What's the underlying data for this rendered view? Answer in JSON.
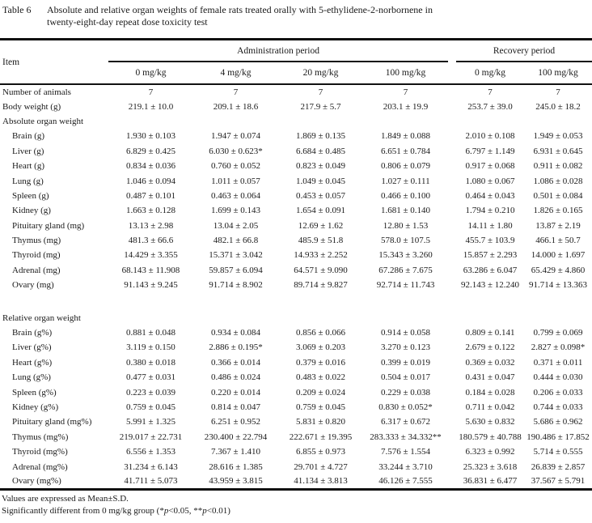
{
  "colors": {
    "ink": "#1a1a1a",
    "background": "#ffffff",
    "rule": "#111111"
  },
  "document": {
    "table_label": "Table 6",
    "title_line1": "Absolute and relative organ weights of female rats treated orally with 5-ethylidene-2-norbornene in",
    "title_line2": "twenty-eight-day repeat dose toxicity test"
  },
  "table": {
    "item_header": "Item",
    "column_groups": [
      {
        "label": "Administration period"
      },
      {
        "label": "Recovery period"
      }
    ],
    "doses": [
      "0 mg/kg",
      "4 mg/kg",
      "20 mg/kg",
      "100 mg/kg",
      "0 mg/kg",
      "100 mg/kg"
    ],
    "rows": [
      {
        "type": "data",
        "indent": 0,
        "item": "Number of animals",
        "values": [
          "7",
          "7",
          "7",
          "7",
          "7",
          "7"
        ]
      },
      {
        "type": "data",
        "indent": 0,
        "item": "Body weight (g)",
        "values": [
          "219.1 ± 10.0",
          "209.1 ± 18.6",
          "217.9 ± 5.7",
          "203.1 ± 19.9",
          "253.7 ± 39.0",
          "245.0 ± 18.2"
        ]
      },
      {
        "type": "section",
        "indent": 0,
        "item": "Absolute organ weight",
        "values": [
          "",
          "",
          "",
          "",
          "",
          ""
        ]
      },
      {
        "type": "data",
        "indent": 1,
        "item": "Brain (g)",
        "values": [
          "1.930 ± 0.103",
          "1.947 ± 0.074",
          "1.869 ± 0.135",
          "1.849 ± 0.088",
          "2.010 ± 0.108",
          "1.949 ± 0.053"
        ]
      },
      {
        "type": "data",
        "indent": 1,
        "item": "Liver (g)",
        "values": [
          "6.829 ± 0.425",
          "6.030 ± 0.623*",
          "6.684 ± 0.485",
          "6.651 ± 0.784",
          "6.797 ± 1.149",
          "6.931 ± 0.645"
        ]
      },
      {
        "type": "data",
        "indent": 1,
        "item": "Heart (g)",
        "values": [
          "0.834 ± 0.036",
          "0.760 ± 0.052",
          "0.823 ± 0.049",
          "0.806 ± 0.079",
          "0.917 ± 0.068",
          "0.911 ± 0.082"
        ]
      },
      {
        "type": "data",
        "indent": 1,
        "item": "Lung (g)",
        "values": [
          "1.046 ± 0.094",
          "1.011 ± 0.057",
          "1.049 ± 0.045",
          "1.027 ± 0.111",
          "1.080 ± 0.067",
          "1.086 ± 0.028"
        ]
      },
      {
        "type": "data",
        "indent": 1,
        "item": "Spleen (g)",
        "values": [
          "0.487 ± 0.101",
          "0.463 ± 0.064",
          "0.453 ± 0.057",
          "0.466 ± 0.100",
          "0.464 ± 0.043",
          "0.501 ± 0.084"
        ]
      },
      {
        "type": "data",
        "indent": 1,
        "item": "Kidney (g)",
        "values": [
          "1.663 ± 0.128",
          "1.699 ± 0.143",
          "1.654 ± 0.091",
          "1.681 ± 0.140",
          "1.794 ± 0.210",
          "1.826 ± 0.165"
        ]
      },
      {
        "type": "data",
        "indent": 1,
        "item": "Pituitary gland (mg)",
        "values": [
          "13.13 ± 2.98",
          "13.04 ± 2.05",
          "12.69 ± 1.62",
          "12.80 ± 1.53",
          "14.11 ± 1.80",
          "13.87 ± 2.19"
        ]
      },
      {
        "type": "data",
        "indent": 1,
        "item": "Thymus (mg)",
        "values": [
          "481.3 ± 66.6",
          "482.1 ± 66.8",
          "485.9 ± 51.8",
          "578.0 ± 107.5",
          "455.7 ± 103.9",
          "466.1 ± 50.7"
        ]
      },
      {
        "type": "data",
        "indent": 1,
        "item": "Thyroid (mg)",
        "values": [
          "14.429 ± 3.355",
          "15.371 ± 3.042",
          "14.933 ± 2.252",
          "15.343 ± 3.260",
          "15.857 ± 2.293",
          "14.000 ± 1.697"
        ]
      },
      {
        "type": "data",
        "indent": 1,
        "item": "Adrenal (mg)",
        "values": [
          "68.143 ± 11.908",
          "59.857 ± 6.094",
          "64.571 ± 9.090",
          "67.286 ± 7.675",
          "63.286 ± 6.047",
          "65.429 ± 4.860"
        ]
      },
      {
        "type": "data",
        "indent": 1,
        "item": "Ovary (mg)",
        "values": [
          "91.143 ± 9.245",
          "91.714 ± 8.902",
          "89.714 ± 9.827",
          "92.714 ± 11.743",
          "92.143 ± 12.240",
          "91.714 ± 13.363"
        ]
      },
      {
        "type": "spacer",
        "indent": 0,
        "item": "",
        "values": [
          "",
          "",
          "",
          "",
          "",
          ""
        ]
      },
      {
        "type": "section",
        "indent": 0,
        "item": "Relative organ weight",
        "values": [
          "",
          "",
          "",
          "",
          "",
          ""
        ]
      },
      {
        "type": "data",
        "indent": 1,
        "item": "Brain (g%)",
        "values": [
          "0.881 ± 0.048",
          "0.934 ± 0.084",
          "0.856 ± 0.066",
          "0.914 ± 0.058",
          "0.809 ± 0.141",
          "0.799 ± 0.069"
        ]
      },
      {
        "type": "data",
        "indent": 1,
        "item": "Liver (g%)",
        "values": [
          "3.119 ± 0.150",
          "2.886 ± 0.195*",
          "3.069 ± 0.203",
          "3.270 ± 0.123",
          "2.679 ± 0.122",
          "2.827 ± 0.098*"
        ]
      },
      {
        "type": "data",
        "indent": 1,
        "item": "Heart (g%)",
        "values": [
          "0.380 ± 0.018",
          "0.366 ± 0.014",
          "0.379 ± 0.016",
          "0.399 ± 0.019",
          "0.369 ± 0.032",
          "0.371 ± 0.011"
        ]
      },
      {
        "type": "data",
        "indent": 1,
        "item": "Lung (g%)",
        "values": [
          "0.477 ± 0.031",
          "0.486 ± 0.024",
          "0.483 ± 0.022",
          "0.504 ± 0.017",
          "0.431 ± 0.047",
          "0.444 ± 0.030"
        ]
      },
      {
        "type": "data",
        "indent": 1,
        "item": "Spleen (g%)",
        "values": [
          "0.223 ± 0.039",
          "0.220 ± 0.014",
          "0.209 ± 0.024",
          "0.229 ± 0.038",
          "0.184 ± 0.028",
          "0.206 ± 0.033"
        ]
      },
      {
        "type": "data",
        "indent": 1,
        "item": "Kidney (g%)",
        "values": [
          "0.759 ± 0.045",
          "0.814 ± 0.047",
          "0.759 ± 0.045",
          "0.830 ± 0.052*",
          "0.711 ± 0.042",
          "0.744 ± 0.033"
        ]
      },
      {
        "type": "data",
        "indent": 1,
        "item": "Pituitary gland (mg%)",
        "values": [
          "5.991 ± 1.325",
          "6.251 ± 0.952",
          "5.831 ± 0.820",
          "6.317 ± 0.672",
          "5.630 ± 0.832",
          "5.686 ± 0.962"
        ]
      },
      {
        "type": "data",
        "indent": 1,
        "item": "Thymus (mg%)",
        "values": [
          "219.017 ± 22.731",
          "230.400 ± 22.794",
          "222.671 ± 19.395",
          "283.333 ± 34.332**",
          "180.579 ± 40.788",
          "190.486 ± 17.852"
        ]
      },
      {
        "type": "data",
        "indent": 1,
        "item": "Thyroid (mg%)",
        "values": [
          "6.556 ± 1.353",
          "7.367 ± 1.410",
          "6.855 ± 0.973",
          "7.576 ± 1.554",
          "6.323 ± 0.992",
          "5.714 ± 0.555"
        ]
      },
      {
        "type": "data",
        "indent": 1,
        "item": "Adrenal (mg%)",
        "values": [
          "31.234 ± 6.143",
          "28.616 ± 1.385",
          "29.701 ± 4.727",
          "33.244 ± 3.710",
          "25.323 ± 3.618",
          "26.839 ± 2.857"
        ]
      },
      {
        "type": "data",
        "indent": 1,
        "item": "Ovary (mg%)",
        "values": [
          "41.711 ± 5.073",
          "43.959 ± 3.815",
          "41.134 ± 3.813",
          "46.126 ± 7.555",
          "36.831 ± 6.477",
          "37.567 ± 5.791"
        ]
      }
    ],
    "footnotes": {
      "line1": "Values are expressed as Mean±S.D.",
      "line2_parts": [
        "Significantly different from 0 mg/kg group (*",
        "p",
        "<0.05, **",
        "p",
        "<0.01)"
      ]
    }
  }
}
